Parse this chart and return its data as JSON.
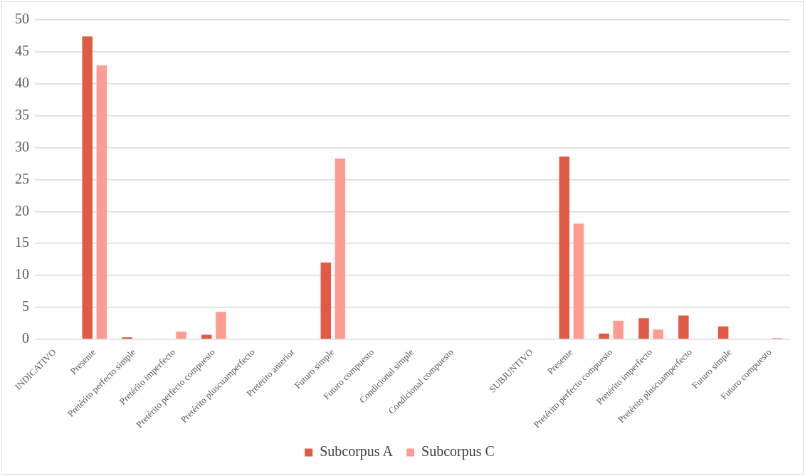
{
  "chart_data": {
    "type": "bar",
    "categories": [
      "INDICATIVO",
      "Presente",
      "Pretérito perfecto simple",
      "Pretérito imperfecto",
      "Pretérito perfecto compuesto",
      "Pretérito pluscuamperfecto",
      "Pretérito anterior",
      "Futuro simple",
      "Futuro compuesto",
      "Condicional simple",
      "Condicional compuesto",
      null,
      "SUBJUNTIVO",
      "Presente",
      "Pretérito perfecto compuesto",
      "Pretérito imperfecto",
      "Pretérito pluscuamperfecto",
      "Futuro simple",
      "Futuro compuesto"
    ],
    "series": [
      {
        "name": "Subcorpus A",
        "color": "#e05a45",
        "values": [
          0,
          47.4,
          0.3,
          0,
          0.7,
          0,
          0,
          12,
          0,
          0,
          0,
          null,
          0,
          28.6,
          0.9,
          3.3,
          3.7,
          2,
          0
        ]
      },
      {
        "name": "Subcorpus C",
        "color": "#ff9c92",
        "values": [
          0,
          42.9,
          0,
          1.2,
          4.3,
          0,
          0,
          28.3,
          0,
          0,
          0,
          null,
          0,
          18.1,
          2.9,
          1.5,
          0,
          0,
          0.2
        ]
      }
    ],
    "ylim": [
      0,
      50
    ],
    "yticks": [
      0,
      5,
      10,
      15,
      20,
      25,
      30,
      35,
      40,
      45,
      50
    ],
    "grid": "y",
    "legend": "bottom"
  }
}
